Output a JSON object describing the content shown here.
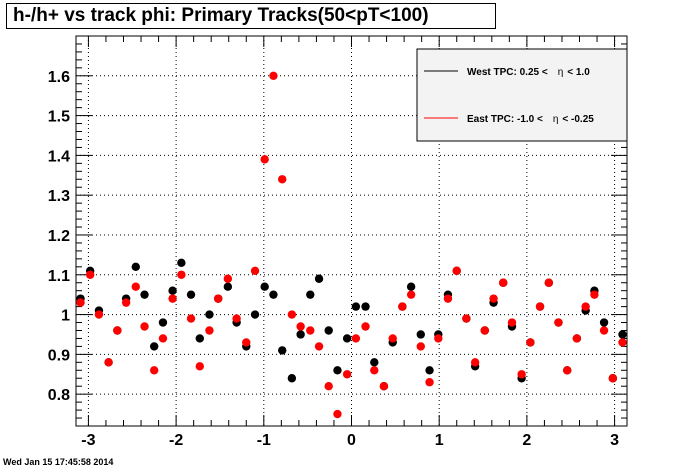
{
  "title": "h-/h+ vs track phi: Primary Tracks(50<pT<100)",
  "footer": "Wed Jan 15 17:45:58 2014",
  "legend": [
    {
      "pre": "West TPC: 0.25 <",
      "eta": "η",
      "post": "< 1.0",
      "color": "#000000"
    },
    {
      "pre": "East TPC: -1.0 <",
      "eta": "η",
      "post": "< -0.25",
      "color": "#ff0000"
    }
  ],
  "chart_data": {
    "type": "scatter",
    "title": "h-/h+ vs track phi: Primary Tracks(50<pT<100)",
    "xlabel": "",
    "ylabel": "",
    "xlim": [
      -3.1416,
      3.1416
    ],
    "ylim": [
      0.72,
      1.7
    ],
    "xticks": [
      -3,
      -2,
      -1,
      0,
      1,
      2,
      3
    ],
    "yticks": [
      0.8,
      0.9,
      1,
      1.1,
      1.2,
      1.3,
      1.4,
      1.5,
      1.6
    ],
    "grid": true,
    "legend_position": "top-right",
    "x": [
      -3.09,
      -2.98,
      -2.88,
      -2.77,
      -2.67,
      -2.57,
      -2.46,
      -2.36,
      -2.25,
      -2.15,
      -2.04,
      -1.94,
      -1.83,
      -1.73,
      -1.62,
      -1.52,
      -1.41,
      -1.31,
      -1.2,
      -1.1,
      -0.99,
      -0.89,
      -0.79,
      -0.68,
      -0.58,
      -0.47,
      -0.37,
      -0.26,
      -0.16,
      -0.05,
      0.05,
      0.16,
      0.26,
      0.37,
      0.47,
      0.58,
      0.68,
      0.79,
      0.89,
      0.99,
      1.1,
      1.2,
      1.31,
      1.41,
      1.52,
      1.62,
      1.73,
      1.83,
      1.94,
      2.04,
      2.15,
      2.25,
      2.36,
      2.46,
      2.57,
      2.67,
      2.77,
      2.88,
      2.98,
      3.09
    ],
    "series": [
      {
        "name": "West TPC: 0.25 < η < 1.0",
        "color": "#000000",
        "values": [
          1.04,
          1.11,
          1.01,
          0.88,
          0.96,
          1.04,
          1.12,
          1.05,
          0.92,
          0.98,
          1.06,
          1.13,
          1.05,
          0.94,
          1.0,
          1.04,
          1.07,
          0.98,
          0.92,
          1.0,
          1.07,
          1.05,
          0.91,
          0.84,
          0.95,
          1.05,
          1.09,
          0.96,
          0.86,
          0.94,
          1.02,
          1.02,
          0.88,
          0.82,
          0.93,
          1.02,
          1.07,
          0.95,
          0.86,
          0.95,
          1.05,
          1.11,
          0.99,
          0.87,
          0.96,
          1.03,
          1.08,
          0.97,
          0.84,
          0.93,
          1.02,
          1.08,
          0.98,
          0.86,
          0.94,
          1.01,
          1.06,
          0.98,
          0.84,
          0.95
        ]
      },
      {
        "name": "East TPC: -1.0 < η < -0.25",
        "color": "#ff0000",
        "values": [
          1.03,
          1.1,
          1.0,
          0.88,
          0.96,
          1.03,
          1.07,
          0.97,
          0.86,
          0.94,
          1.04,
          1.1,
          0.99,
          0.87,
          0.96,
          1.04,
          1.09,
          0.99,
          0.93,
          1.11,
          1.39,
          1.6,
          1.34,
          1.0,
          0.97,
          0.96,
          0.92,
          0.82,
          0.75,
          0.85,
          0.94,
          0.97,
          0.86,
          0.82,
          0.94,
          1.02,
          1.05,
          0.92,
          0.83,
          0.94,
          1.04,
          1.11,
          0.99,
          0.88,
          0.96,
          1.04,
          1.08,
          0.98,
          0.85,
          0.93,
          1.02,
          1.08,
          0.98,
          0.86,
          0.94,
          1.02,
          1.05,
          0.96,
          0.84,
          0.93
        ]
      }
    ]
  }
}
